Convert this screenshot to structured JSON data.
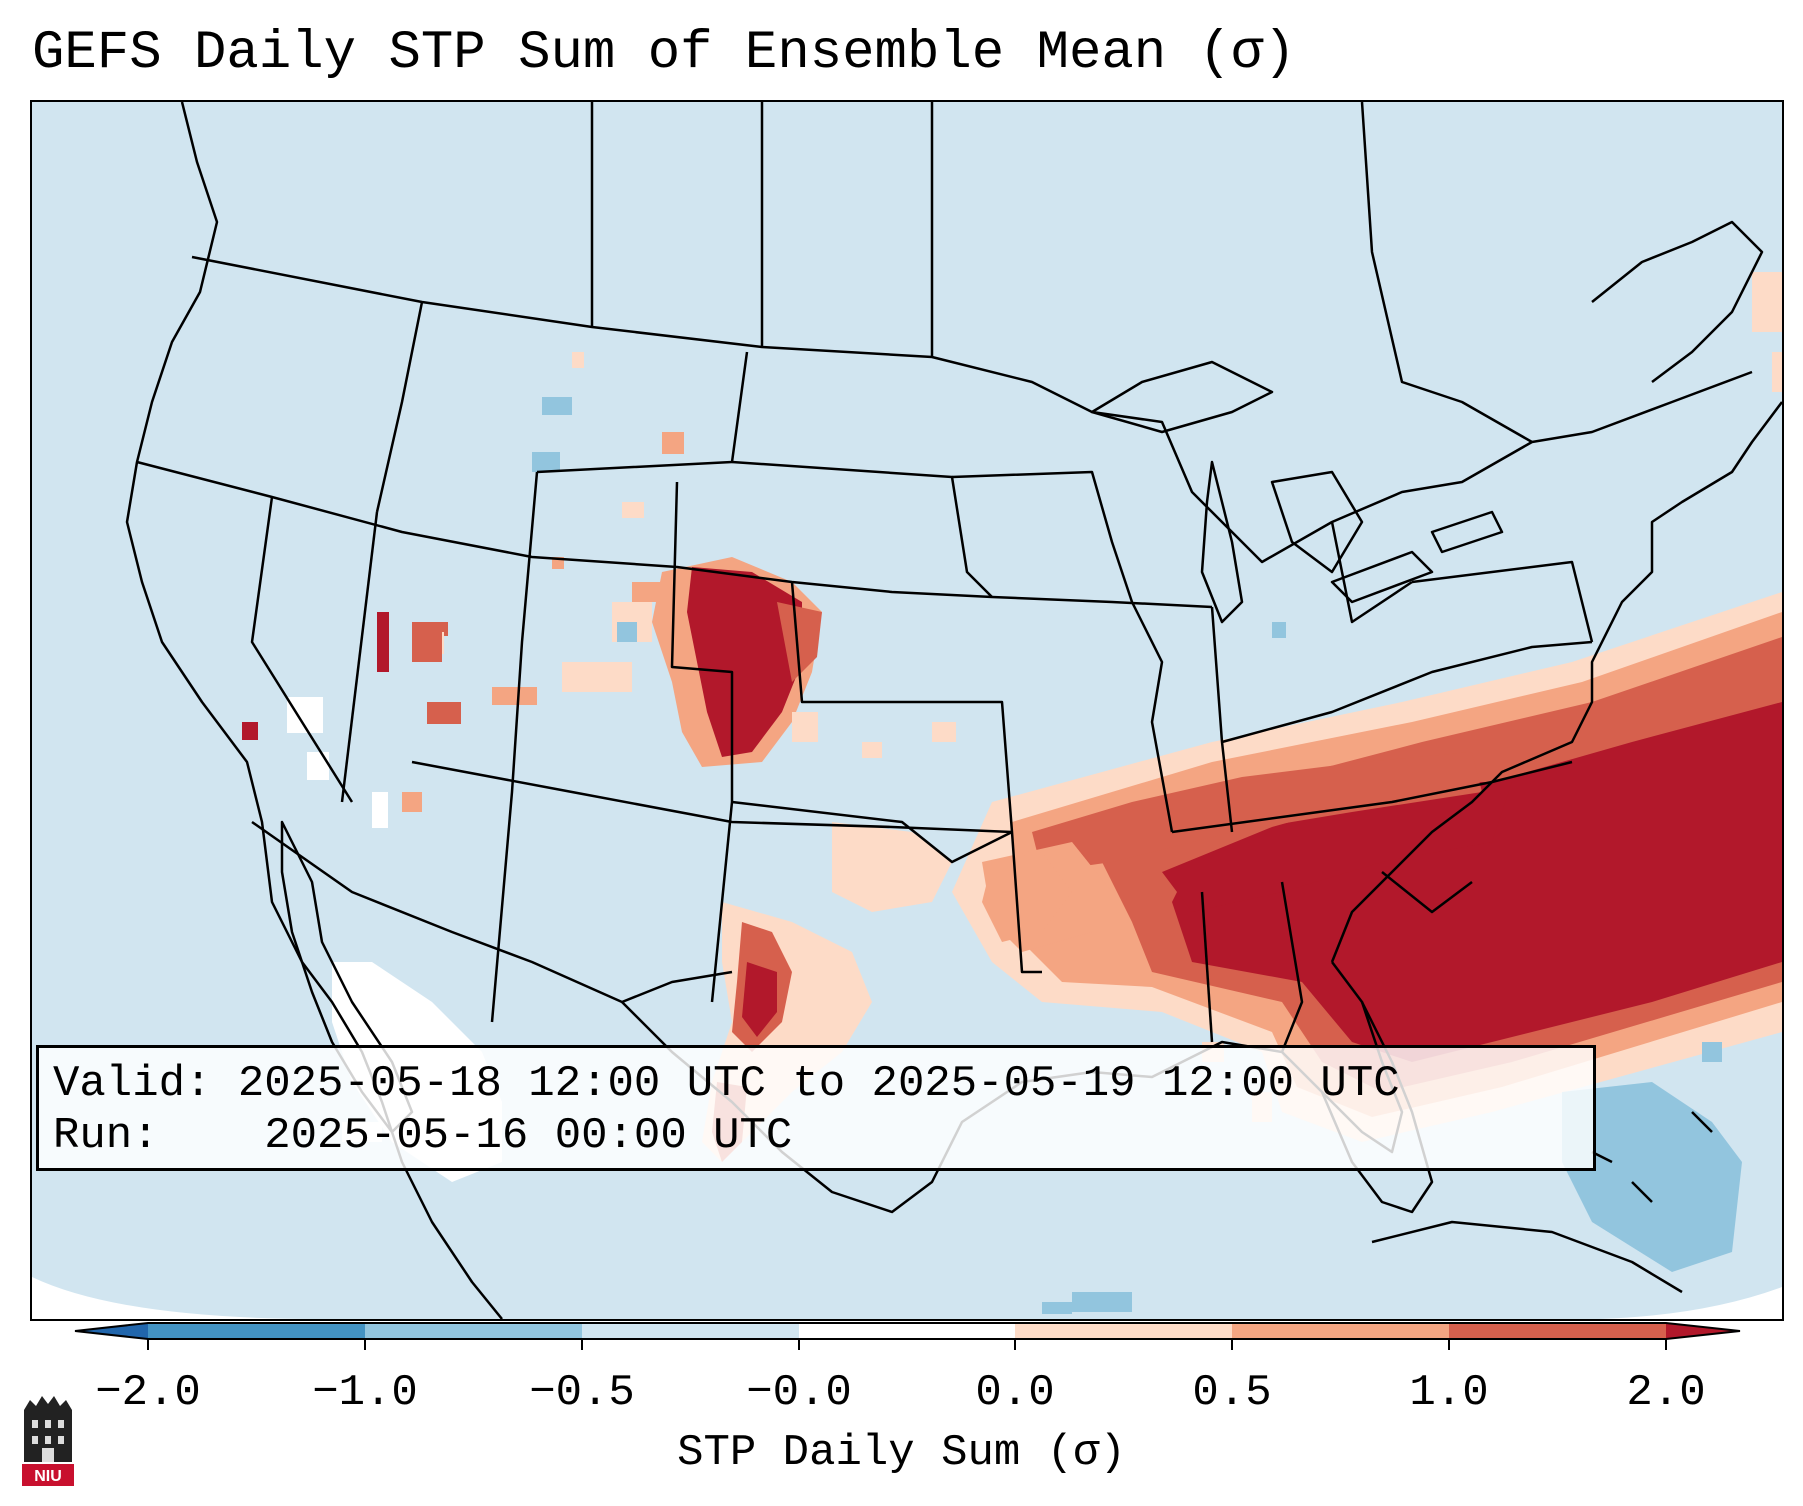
{
  "title": "GEFS Daily STP Sum of Ensemble Mean (σ)",
  "info": {
    "valid_label": "Valid:",
    "valid_value": "2025-05-18 12:00 UTC to 2025-05-19 12:00 UTC",
    "run_label": "Run:",
    "run_value": "2025-05-16 00:00 UTC"
  },
  "colorbar": {
    "label": "STP Daily Sum (σ)",
    "ticks": [
      "−2.0",
      "−1.0",
      "−0.5",
      "−0.0",
      "0.0",
      "0.5",
      "1.0",
      "2.0"
    ],
    "colors": {
      "lt_neg2": "#2166ac",
      "neg2_neg1": "#4393c3",
      "neg1_neg05": "#92c5de",
      "neg05_0": "#d1e5f0",
      "zero": "#ffffff",
      "pos0_05": "#fddbc7",
      "pos05_1": "#f4a582",
      "pos1_2": "#d6604d",
      "gt_2": "#b2182b"
    }
  },
  "map": {
    "background_color": "#d1e5f0",
    "border_color": "#000000",
    "high_region_color": "#b2182b"
  },
  "logo": {
    "text": "NIU"
  }
}
